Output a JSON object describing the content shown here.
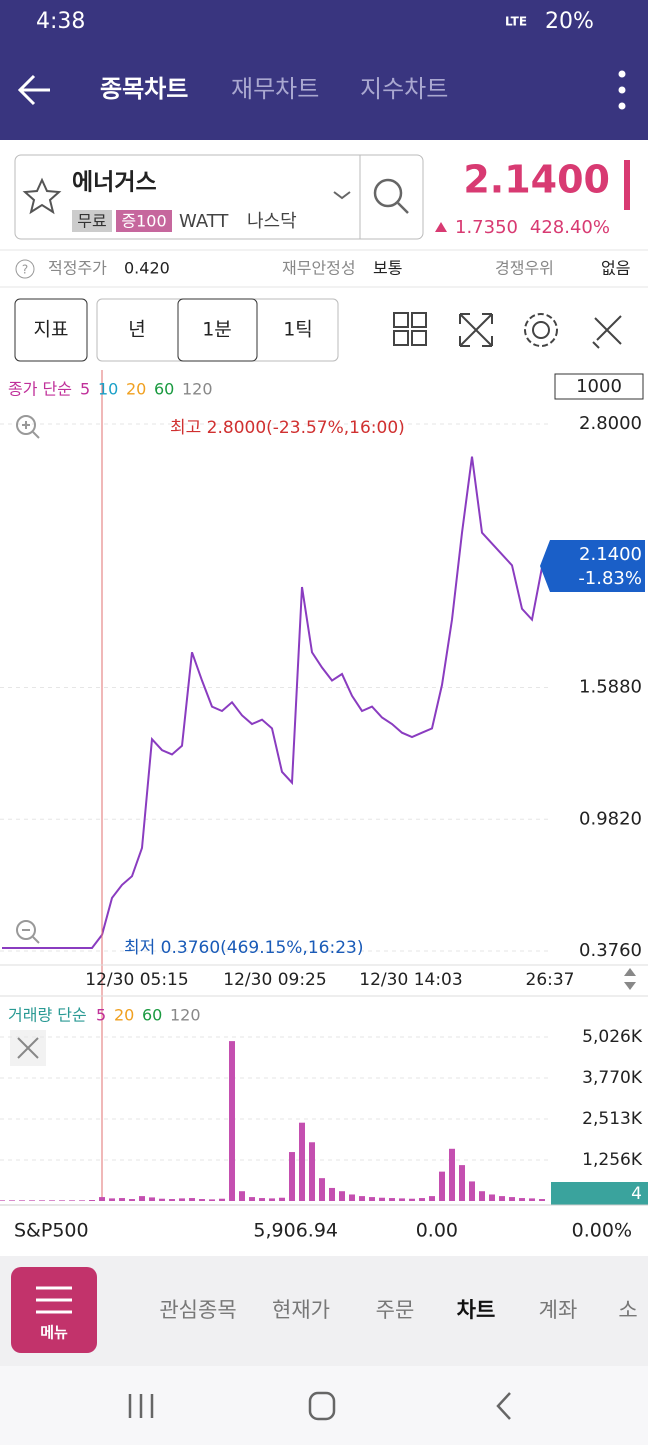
{
  "status_bar": {
    "time": "4:38",
    "network": "LTE",
    "battery": "20%"
  },
  "header": {
    "tabs": [
      "종목차트",
      "재무차트",
      "지수차트"
    ]
  },
  "stock": {
    "name": "에너거스",
    "tags": [
      "무료",
      "증100",
      "WATT",
      "나스닥"
    ],
    "price": "2.1400",
    "change": "1.7350",
    "change_rate": "428.40%"
  },
  "info": {
    "fair_price_label": "적정주가",
    "fair_price": "0.420",
    "stability_label": "재무안정성",
    "stability": "보통",
    "advantage_label": "경쟁우위",
    "advantage": "없음"
  },
  "toolbar": {
    "indicator": "지표",
    "periods": [
      "년",
      "1분",
      "1틱"
    ]
  },
  "price_chart": {
    "legend": {
      "title": "종가 단순",
      "periods": [
        "5",
        "10",
        "20",
        "60",
        "120"
      ]
    },
    "unit_box": "1000",
    "ylim": [
      0.376,
      2.8
    ],
    "yticks": [
      {
        "value": 0.376,
        "label": "0.3760"
      },
      {
        "value": 0.982,
        "label": "0.9820"
      },
      {
        "value": 1.588,
        "label": "1.5880"
      },
      {
        "value": 2.8,
        "label": "2.8000"
      }
    ],
    "current": {
      "price": "2.1400",
      "change": "-1.83%"
    },
    "high_label": "최고 2.8000(-23.57%,16:00)",
    "low_label": "최저 0.3760(469.15%,16:23)",
    "x_labels": [
      "12/30 05:15",
      "12/30 09:25",
      "12/30 14:03",
      "26:37"
    ],
    "values": [
      0.39,
      0.39,
      0.39,
      0.39,
      0.39,
      0.39,
      0.39,
      0.39,
      0.39,
      0.39,
      0.45,
      0.62,
      0.68,
      0.72,
      0.85,
      1.35,
      1.3,
      1.28,
      1.32,
      1.75,
      1.62,
      1.5,
      1.48,
      1.52,
      1.46,
      1.42,
      1.44,
      1.4,
      1.2,
      1.15,
      2.05,
      1.75,
      1.68,
      1.62,
      1.65,
      1.55,
      1.48,
      1.5,
      1.45,
      1.42,
      1.38,
      1.36,
      1.38,
      1.4,
      1.6,
      1.9,
      2.3,
      2.65,
      2.3,
      2.25,
      2.2,
      2.15,
      1.95,
      1.9,
      2.14
    ]
  },
  "volume_chart": {
    "legend": {
      "title": "거래량 단순",
      "periods": [
        "5",
        "20",
        "60",
        "120"
      ]
    },
    "ylim": [
      0,
      5026
    ],
    "yticks": [
      {
        "value": 1256,
        "label": "1,256K"
      },
      {
        "value": 2513,
        "label": "2,513K"
      },
      {
        "value": 3770,
        "label": "3,770K"
      },
      {
        "value": 5026,
        "label": "5,026K"
      }
    ],
    "current": "4",
    "values": [
      20,
      20,
      20,
      20,
      20,
      20,
      20,
      20,
      20,
      30,
      120,
      80,
      90,
      60,
      150,
      110,
      70,
      60,
      80,
      90,
      60,
      50,
      70,
      4900,
      300,
      120,
      90,
      80,
      100,
      1500,
      2400,
      1800,
      700,
      400,
      300,
      200,
      150,
      120,
      100,
      90,
      80,
      70,
      90,
      150,
      900,
      1600,
      1100,
      600,
      300,
      200,
      150,
      120,
      90,
      80,
      60
    ]
  },
  "index_bar": {
    "name": "S&P500",
    "value": "5,906.94",
    "change": "0.00",
    "change_rate": "0.00%"
  },
  "bottom_nav": {
    "menu": "메뉴",
    "items": [
      "관심종목",
      "현재가",
      "주문",
      "차트",
      "계좌",
      "소"
    ]
  }
}
